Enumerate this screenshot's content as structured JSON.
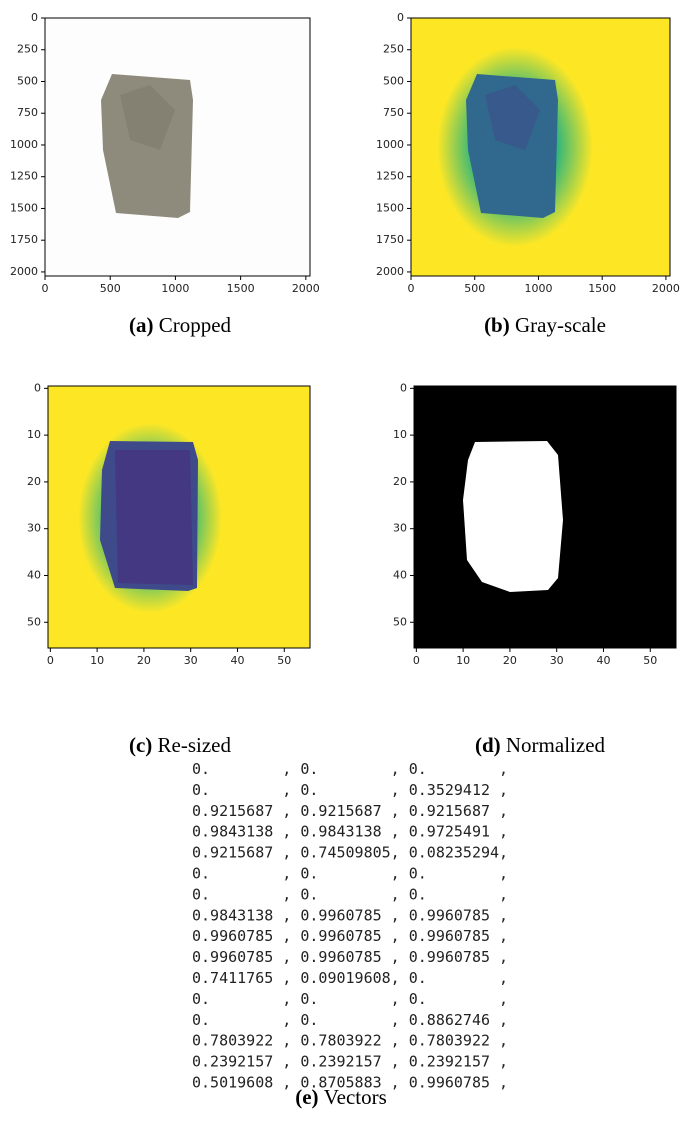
{
  "panels": [
    {
      "label": "(a)",
      "caption": "Cropped",
      "xlim": [
        0,
        2032
      ],
      "ylim": [
        2032,
        0
      ],
      "xticks": [
        0,
        500,
        1000,
        1500,
        2000
      ],
      "yticks": [
        0,
        250,
        500,
        750,
        1000,
        1250,
        1500,
        1750,
        2000
      ]
    },
    {
      "label": "(b)",
      "caption": "Gray-scale",
      "xlim": [
        0,
        2032
      ],
      "ylim": [
        2032,
        0
      ],
      "xticks": [
        0,
        500,
        1000,
        1500,
        2000
      ],
      "yticks": [
        0,
        250,
        500,
        750,
        1000,
        1250,
        1500,
        1750,
        2000
      ]
    },
    {
      "label": "(c)",
      "caption": "Re-sized",
      "xlim": [
        -0.5,
        55.5
      ],
      "ylim": [
        55.5,
        -0.5
      ],
      "xticks": [
        0,
        10,
        20,
        30,
        40,
        50
      ],
      "yticks": [
        0,
        10,
        20,
        30,
        40,
        50
      ]
    },
    {
      "label": "(d)",
      "caption": "Normalized",
      "xlim": [
        -0.5,
        55.5
      ],
      "ylim": [
        55.5,
        -0.5
      ],
      "xticks": [
        0,
        10,
        20,
        30,
        40,
        50
      ],
      "yticks": [
        0,
        10,
        20,
        30,
        40,
        50
      ]
    }
  ],
  "vectors": {
    "label": "(e)",
    "caption": "Vectors",
    "lines": [
      "0.        , 0.        , 0.        ,",
      "0.        , 0.        , 0.3529412 ,",
      "0.9215687 , 0.9215687 , 0.9215687 ,",
      "0.9843138 , 0.9843138 , 0.9725491 ,",
      "0.9215687 , 0.74509805, 0.08235294,",
      "0.        , 0.        , 0.        ,",
      "0.        , 0.        , 0.        ,",
      "0.9843138 , 0.9960785 , 0.9960785 ,",
      "0.9960785 , 0.9960785 , 0.9960785 ,",
      "0.9960785 , 0.9960785 , 0.9960785 ,",
      "0.7411765 , 0.09019608, 0.        ,",
      "0.        , 0.        , 0.        ,",
      "0.        , 0.        , 0.8862746 ,",
      "0.7803922 , 0.7803922 , 0.7803922 ,",
      "0.2392157 , 0.2392157 , 0.2392157 ,",
      "0.5019608 , 0.8705883 , 0.9960785 ,"
    ]
  }
}
